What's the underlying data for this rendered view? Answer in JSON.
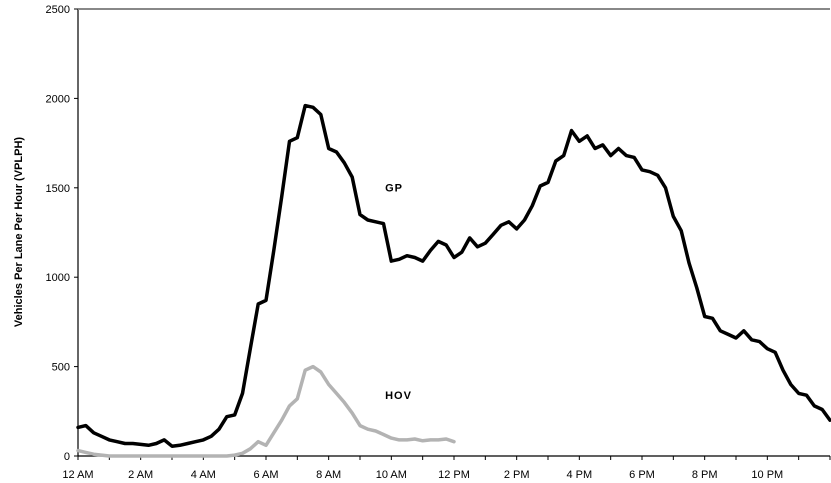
{
  "chart_data": {
    "type": "line",
    "title": "",
    "xlabel": "",
    "ylabel": "Vehicles Per Lane Per Hour (VPLPH)",
    "ylim": [
      0,
      2500
    ],
    "xlim": [
      0,
      24
    ],
    "grid": false,
    "y_ticks": [
      0,
      500,
      1000,
      1500,
      2000,
      2500
    ],
    "x_tick_labels": [
      "12 AM",
      "2 AM",
      "4 AM",
      "6 AM",
      "8 AM",
      "10 AM",
      "12 PM",
      "2 PM",
      "4 PM",
      "6 PM",
      "8 PM",
      "10 PM"
    ],
    "x_tick_hours": [
      0,
      2,
      4,
      6,
      8,
      10,
      12,
      14,
      16,
      18,
      20,
      22
    ],
    "series": [
      {
        "name": "GP",
        "color": "#000000",
        "label_at": [
          9.8,
          1480
        ],
        "x": [
          0,
          0.25,
          0.5,
          0.75,
          1,
          1.25,
          1.5,
          1.75,
          2,
          2.25,
          2.5,
          2.75,
          3,
          3.25,
          3.5,
          3.75,
          4,
          4.25,
          4.5,
          4.75,
          5,
          5.25,
          5.5,
          5.75,
          6,
          6.25,
          6.5,
          6.75,
          7,
          7.25,
          7.5,
          7.75,
          8,
          8.25,
          8.5,
          8.75,
          9,
          9.25,
          9.5,
          9.75,
          10,
          10.25,
          10.5,
          10.75,
          11,
          11.25,
          11.5,
          11.75,
          12,
          12.25,
          12.5,
          12.75,
          13,
          13.25,
          13.5,
          13.75,
          14,
          14.25,
          14.5,
          14.75,
          15,
          15.25,
          15.5,
          15.75,
          16,
          16.25,
          16.5,
          16.75,
          17,
          17.25,
          17.5,
          17.75,
          18,
          18.25,
          18.5,
          18.75,
          19,
          19.25,
          19.5,
          19.75,
          20,
          20.25,
          20.5,
          20.75,
          21,
          21.25,
          21.5,
          21.75,
          22,
          22.25,
          22.5,
          22.75,
          23,
          23.25,
          23.5,
          23.75,
          24
        ],
        "y": [
          160,
          170,
          130,
          110,
          90,
          80,
          70,
          70,
          65,
          60,
          70,
          90,
          55,
          60,
          70,
          80,
          90,
          110,
          150,
          220,
          230,
          350,
          600,
          850,
          870,
          1150,
          1450,
          1760,
          1780,
          1960,
          1950,
          1910,
          1720,
          1700,
          1640,
          1560,
          1350,
          1320,
          1310,
          1300,
          1090,
          1100,
          1120,
          1110,
          1090,
          1150,
          1200,
          1180,
          1110,
          1140,
          1220,
          1170,
          1190,
          1240,
          1290,
          1310,
          1270,
          1320,
          1400,
          1510,
          1530,
          1650,
          1680,
          1820,
          1760,
          1790,
          1720,
          1740,
          1680,
          1720,
          1680,
          1670,
          1600,
          1590,
          1570,
          1500,
          1340,
          1260,
          1080,
          940,
          780,
          770,
          700,
          680,
          660,
          700,
          650,
          640,
          600,
          580,
          480,
          400,
          350,
          340,
          280,
          260,
          200
        ]
      },
      {
        "name": "HOV",
        "color": "#b3b3b3",
        "label_at": [
          9.8,
          320
        ],
        "x": [
          0,
          0.25,
          0.5,
          0.75,
          1,
          1.25,
          1.5,
          1.75,
          2,
          2.25,
          2.5,
          2.75,
          3,
          3.25,
          3.5,
          3.75,
          4,
          4.25,
          4.5,
          4.75,
          5,
          5.25,
          5.5,
          5.75,
          6,
          6.25,
          6.5,
          6.75,
          7,
          7.25,
          7.5,
          7.75,
          8,
          8.25,
          8.5,
          8.75,
          9,
          9.25,
          9.5,
          9.75,
          10,
          10.25,
          10.5,
          10.75,
          11,
          11.25,
          11.5,
          11.75,
          12
        ],
        "y": [
          30,
          20,
          10,
          5,
          0,
          0,
          0,
          0,
          0,
          0,
          0,
          0,
          0,
          0,
          0,
          0,
          0,
          0,
          0,
          0,
          5,
          15,
          40,
          80,
          60,
          130,
          200,
          280,
          320,
          480,
          500,
          470,
          400,
          350,
          300,
          240,
          170,
          150,
          140,
          120,
          100,
          90,
          90,
          95,
          85,
          90,
          90,
          95,
          80
        ]
      }
    ]
  }
}
